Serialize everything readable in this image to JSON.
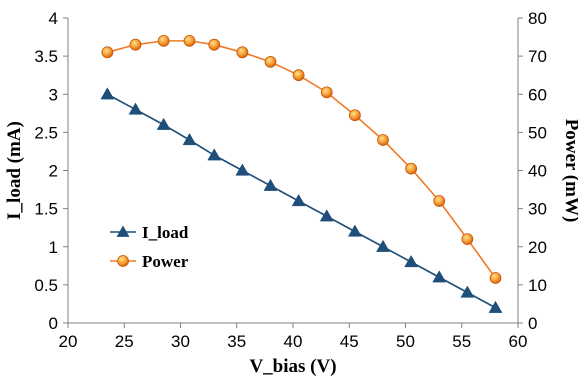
{
  "chart_data": {
    "type": "line",
    "x": [
      23.5,
      26,
      28.5,
      30.8,
      33,
      35.5,
      38,
      40.5,
      43,
      45.5,
      48,
      50.5,
      53,
      55.5,
      58
    ],
    "series": [
      {
        "name": "I_load",
        "axis": "left",
        "color": "#1f4e79",
        "marker": "triangle",
        "values": [
          3.0,
          2.8,
          2.6,
          2.4,
          2.2,
          2.0,
          1.8,
          1.6,
          1.4,
          1.2,
          1.0,
          0.8,
          0.6,
          0.4,
          0.2
        ]
      },
      {
        "name": "Power",
        "axis": "right",
        "color": "#f07a28",
        "marker": "circle",
        "values": [
          71,
          73,
          74,
          74,
          73,
          71,
          68.5,
          65,
          60.5,
          54.5,
          48,
          40.5,
          32,
          22,
          11.8
        ]
      }
    ],
    "xlabel": "V_bias (V)",
    "ylabel_left": "I_load (mA)",
    "ylabel_right": "Power (mW)",
    "xlim": [
      20,
      60
    ],
    "ylim_left": [
      0,
      4
    ],
    "ylim_right": [
      0,
      80
    ],
    "xticks": [
      20,
      25,
      30,
      35,
      40,
      45,
      50,
      55,
      60
    ],
    "yticks_left": [
      0,
      0.5,
      1,
      1.5,
      2,
      2.5,
      3,
      3.5,
      4
    ],
    "yticks_right": [
      0,
      10,
      20,
      30,
      40,
      50,
      60,
      70,
      80
    ],
    "grid": false,
    "legend": "lower-left"
  }
}
